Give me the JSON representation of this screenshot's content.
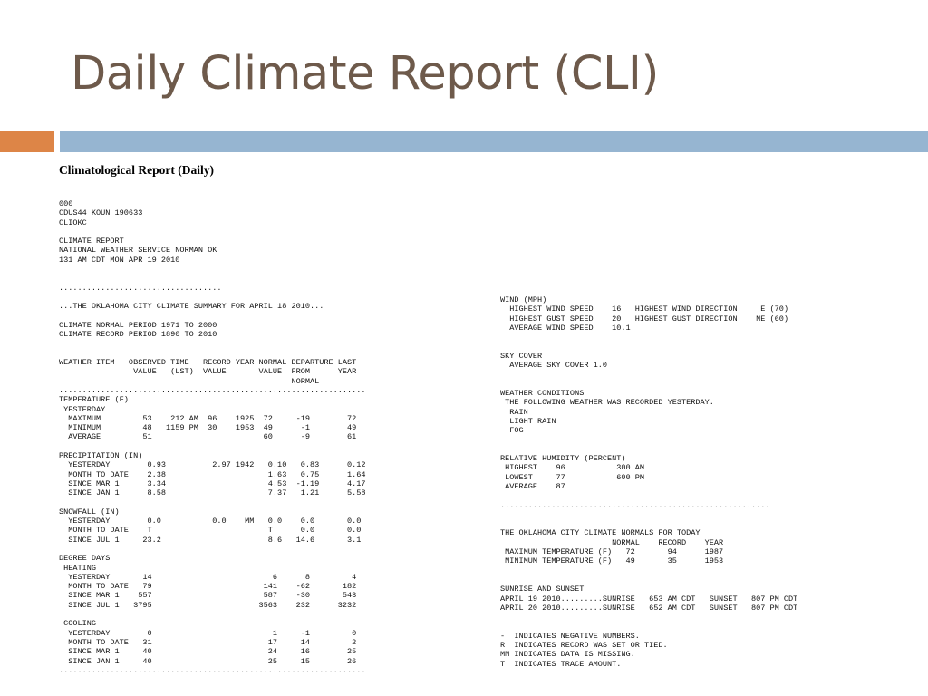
{
  "slide": {
    "title": "Daily Climate Report (CLI)"
  },
  "report": {
    "heading": "Climatological Report (Daily)",
    "left_column": "000\nCDUS44 KOUN 190633\nCLIOKC\n\nCLIMATE REPORT\nNATIONAL WEATHER SERVICE NORMAN OK\n131 AM CDT MON APR 19 2010\n\n\n...................................\n\n...THE OKLAHOMA CITY CLIMATE SUMMARY FOR APRIL 18 2010...\n\nCLIMATE NORMAL PERIOD 1971 TO 2000\nCLIMATE RECORD PERIOD 1890 TO 2010\n\n\nWEATHER ITEM   OBSERVED TIME   RECORD YEAR NORMAL DEPARTURE LAST\n                VALUE   (LST)  VALUE       VALUE  FROM      YEAR\n                                                  NORMAL\n..................................................................\nTEMPERATURE (F)\n YESTERDAY\n  MAXIMUM         53    212 AM  96    1925  72     -19        72\n  MINIMUM         48   1159 PM  30    1953  49      -1        49\n  AVERAGE         51                        60      -9        61\n\nPRECIPITATION (IN)\n  YESTERDAY        0.93          2.97 1942   0.10   0.83      0.12\n  MONTH TO DATE    2.38                      1.63   0.75      1.64\n  SINCE MAR 1      3.34                      4.53  -1.19      4.17\n  SINCE JAN 1      8.58                      7.37   1.21      5.58\n\nSNOWFALL (IN)\n  YESTERDAY        0.0           0.0    MM   0.0    0.0       0.0\n  MONTH TO DATE    T                         T      0.0       0.0\n  SINCE JUL 1     23.2                       8.6   14.6       3.1\n\nDEGREE DAYS\n HEATING\n  YESTERDAY       14                          6      8         4\n  MONTH TO DATE   79                        141    -62       182\n  SINCE MAR 1    557                        587    -30       543\n  SINCE JUL 1   3795                       3563    232      3232\n\n COOLING\n  YESTERDAY        0                          1     -1         0\n  MONTH TO DATE   31                         17     14         2\n  SINCE MAR 1     40                         24     16        25\n  SINCE JAN 1     40                         25     15        26\n..................................................................",
    "right_column": "WIND (MPH)\n  HIGHEST WIND SPEED    16   HIGHEST WIND DIRECTION     E (70)\n  HIGHEST GUST SPEED    20   HIGHEST GUST DIRECTION    NE (60)\n  AVERAGE WIND SPEED    10.1\n\n\nSKY COVER\n  AVERAGE SKY COVER 1.0\n\n\nWEATHER CONDITIONS\n THE FOLLOWING WEATHER WAS RECORDED YESTERDAY.\n  RAIN\n  LIGHT RAIN\n  FOG\n\n\nRELATIVE HUMIDITY (PERCENT)\n HIGHEST    96           300 AM\n LOWEST     77           600 PM\n AVERAGE    87\n\n..........................................................\n\n\nTHE OKLAHOMA CITY CLIMATE NORMALS FOR TODAY\n                        NORMAL    RECORD    YEAR\n MAXIMUM TEMPERATURE (F)   72       94      1987\n MINIMUM TEMPERATURE (F)   49       35      1953\n\n\nSUNRISE AND SUNSET\nAPRIL 19 2010.........SUNRISE   653 AM CDT   SUNSET   807 PM CDT\nAPRIL 20 2010.........SUNRISE   652 AM CDT   SUNSET   807 PM CDT\n\n\n-  INDICATES NEGATIVE NUMBERS.\nR  INDICATES RECORD WAS SET OR TIED.\nMM INDICATES DATA IS MISSING.\nT  INDICATES TRACE AMOUNT."
  },
  "colors": {
    "title": "#6e5a4b",
    "accent_orange": "#dd8547",
    "accent_blue": "#96b5d1"
  }
}
